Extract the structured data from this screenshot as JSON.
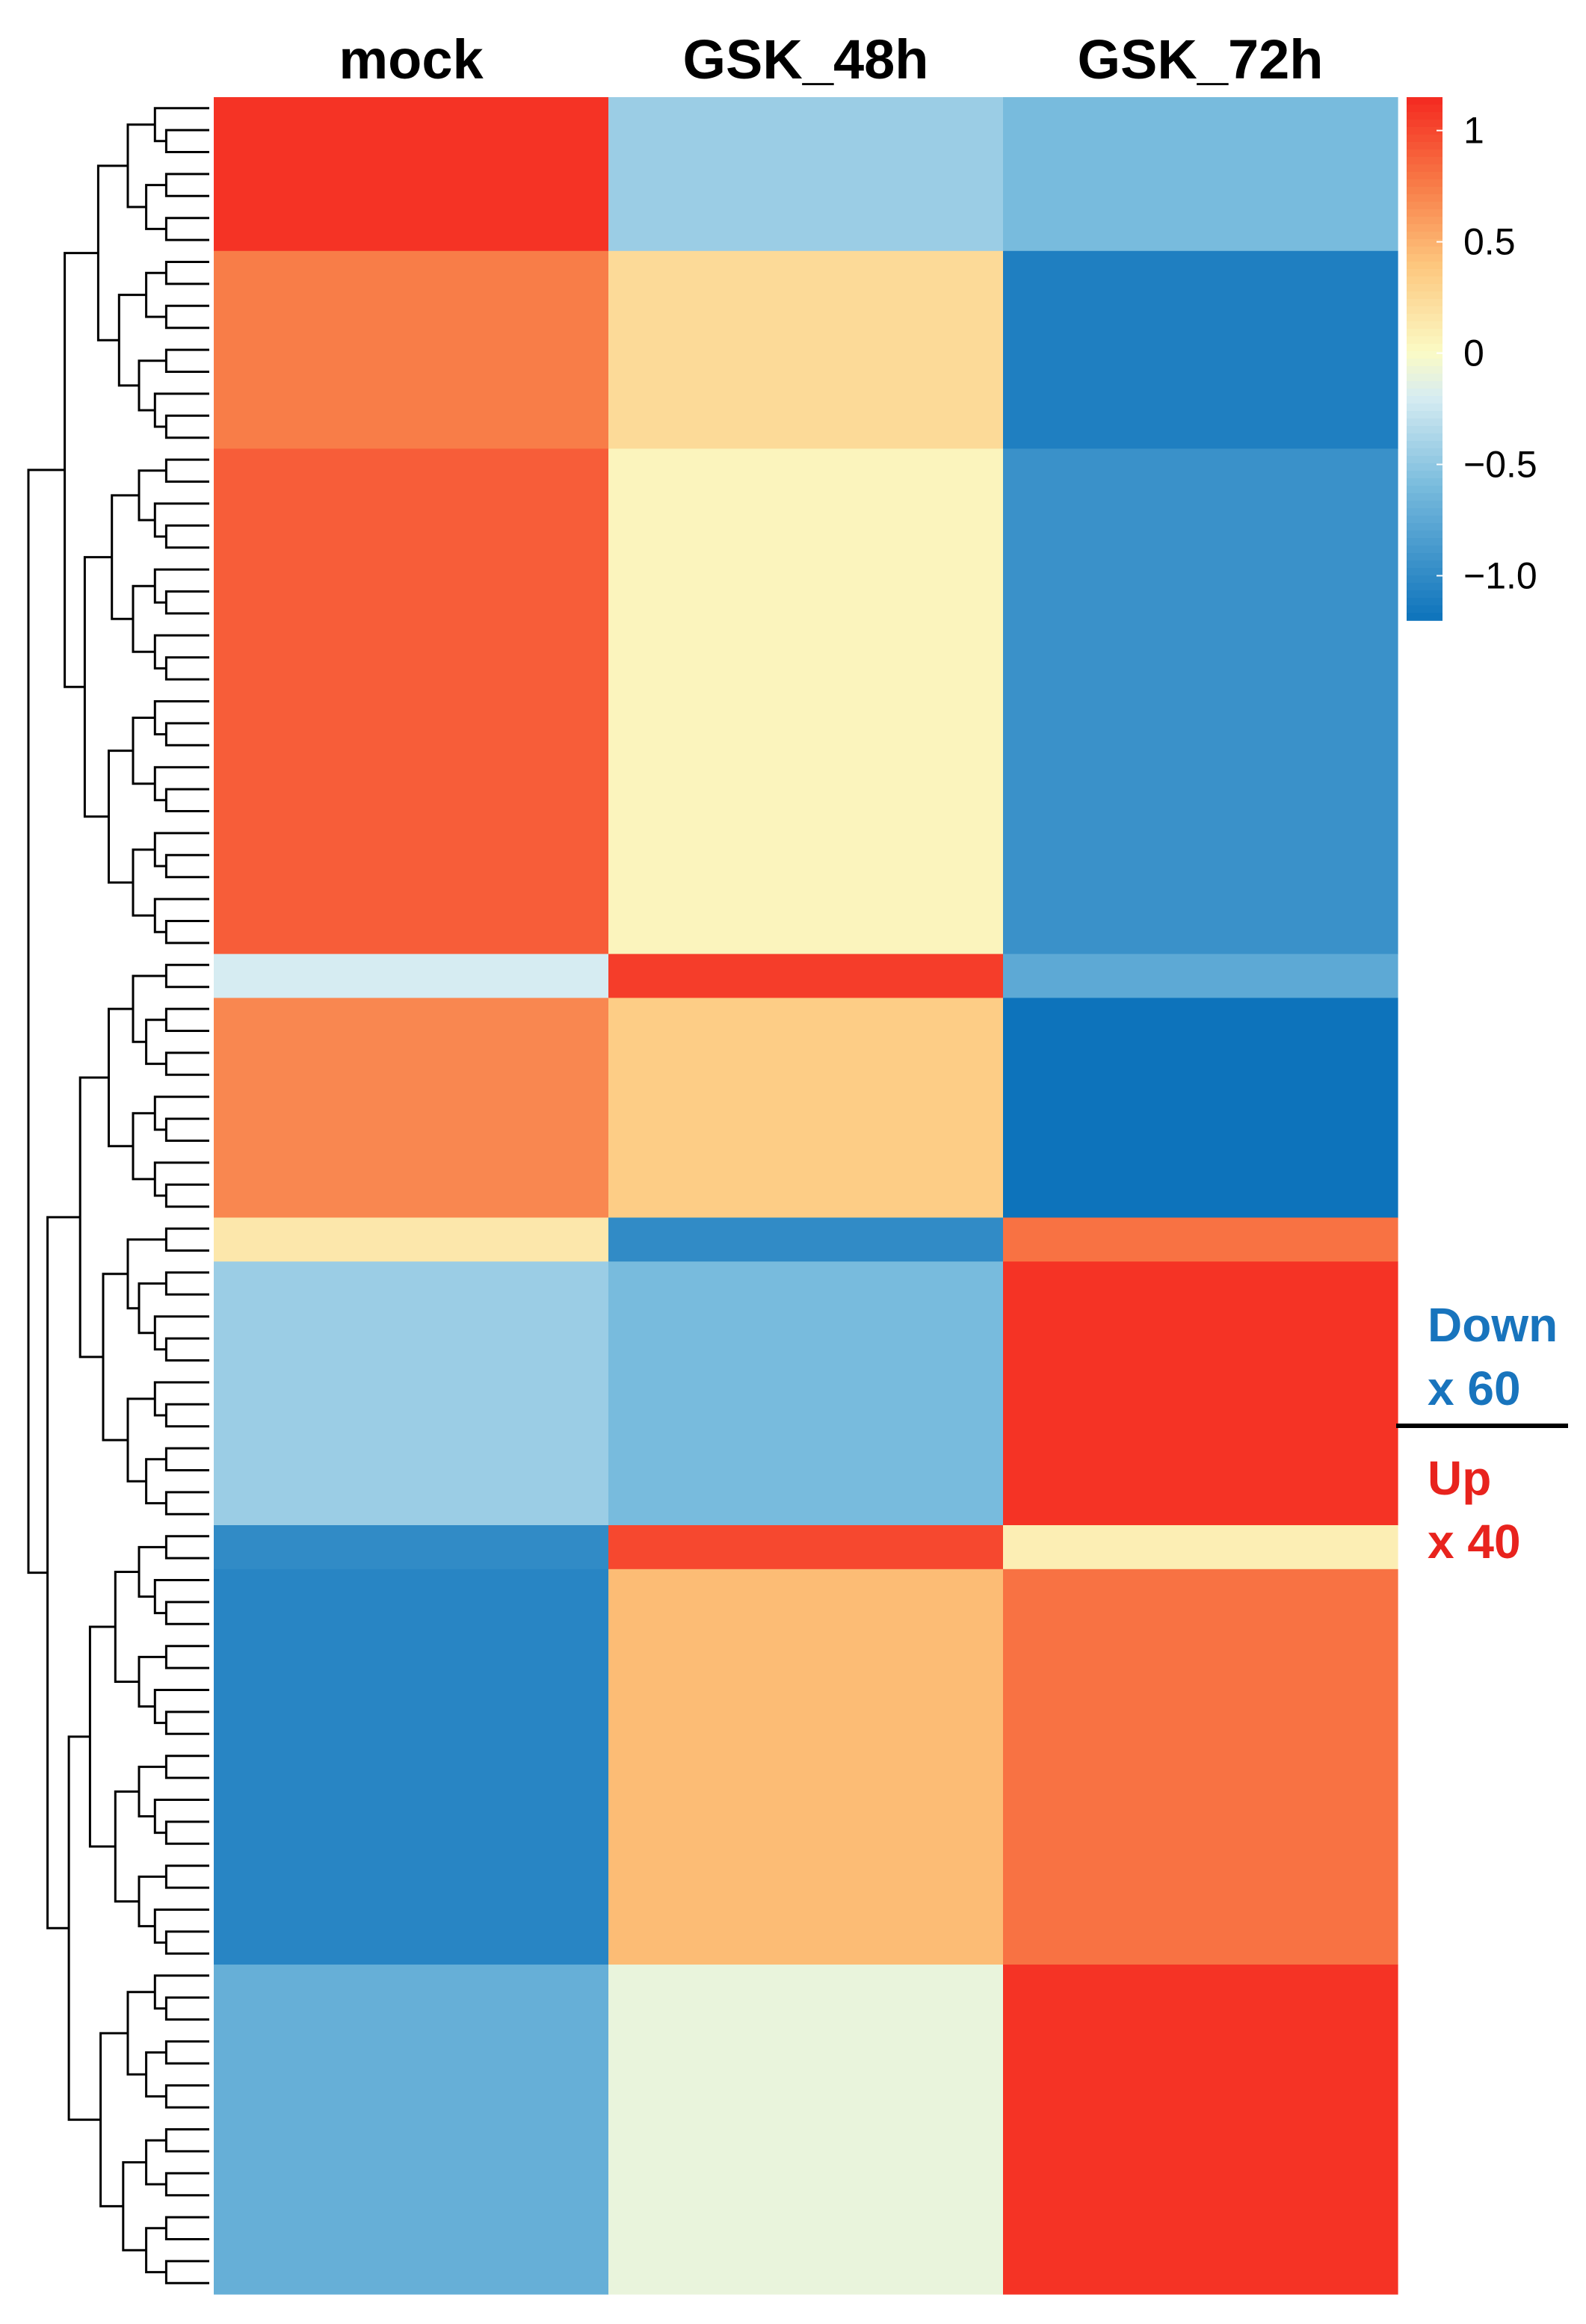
{
  "chart_data": {
    "type": "heatmap",
    "columns": [
      "mock",
      "GSK_48h",
      "GSK_72h"
    ],
    "row_groups": [
      {
        "count": 7,
        "values": [
          1.1,
          -0.45,
          -0.6
        ]
      },
      {
        "count": 9,
        "values": [
          0.75,
          0.25,
          -1.1
        ]
      },
      {
        "count": 23,
        "values": [
          0.9,
          0.05,
          -0.95
        ]
      },
      {
        "count": 2,
        "values": [
          -0.2,
          1.05,
          -0.75
        ]
      },
      {
        "count": 10,
        "values": [
          0.7,
          0.35,
          -1.2
        ]
      },
      {
        "count": 2,
        "values": [
          0.15,
          -1.0,
          0.8
        ]
      },
      {
        "count": 12,
        "values": [
          -0.45,
          -0.6,
          1.1
        ]
      },
      {
        "count": 2,
        "values": [
          -1.0,
          1.0,
          0.1
        ]
      },
      {
        "count": 18,
        "values": [
          -1.05,
          0.45,
          0.8
        ]
      },
      {
        "count": 15,
        "values": [
          -0.7,
          -0.1,
          1.1
        ]
      }
    ],
    "colorbar": {
      "min": -1.2,
      "max": 1.15,
      "ticks": [
        1,
        0.5,
        0,
        -0.5,
        -1.0
      ],
      "tick_labels": [
        "1",
        "0.5",
        "0",
        "−0.5",
        "−1.0"
      ]
    },
    "annotations": {
      "down": {
        "label": "Down",
        "count": "x 60",
        "color": "#1874bd"
      },
      "up": {
        "label": "Up",
        "count": "x 40",
        "color": "#e8231d"
      }
    },
    "dendrogram": "hierarchical clustering of rows"
  }
}
